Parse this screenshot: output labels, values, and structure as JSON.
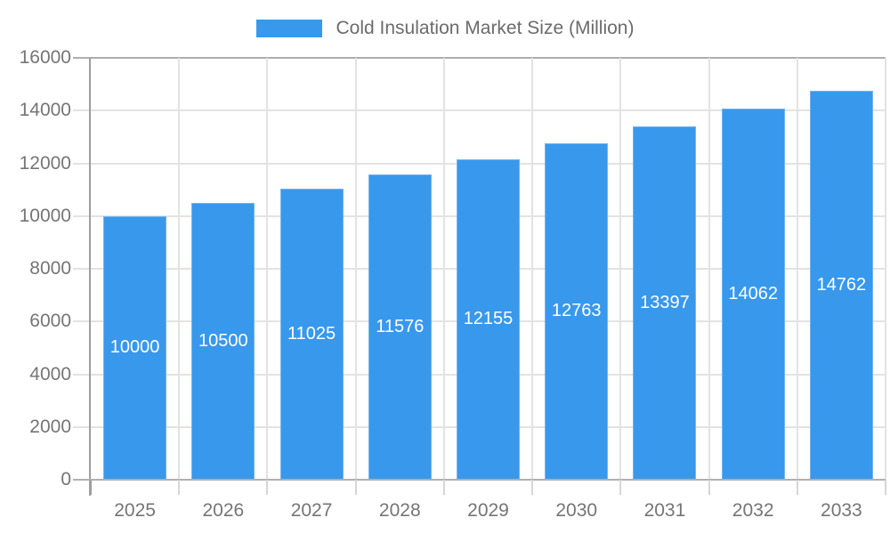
{
  "legend": {
    "label": "Cold Insulation Market Size (Million)"
  },
  "chart_data": {
    "type": "bar",
    "title": "Cold Insulation Market Size (Million)",
    "categories": [
      "2025",
      "2026",
      "2027",
      "2028",
      "2029",
      "2030",
      "2031",
      "2032",
      "2033"
    ],
    "values": [
      10000,
      10500,
      11025,
      11576,
      12155,
      12763,
      13397,
      14062,
      14762
    ],
    "series": [
      {
        "name": "Cold Insulation Market Size (Million)",
        "values": [
          10000,
          10500,
          11025,
          11576,
          12155,
          12763,
          13397,
          14062,
          14762
        ]
      }
    ],
    "bar_labels": [
      "10000",
      "10500",
      "11025",
      "11576",
      "12155",
      "12763",
      "13397",
      "14062",
      "14762"
    ],
    "xlabel": "",
    "ylabel": "",
    "ylim": [
      0,
      16000
    ],
    "yticks": [
      0,
      2000,
      4000,
      6000,
      8000,
      10000,
      12000,
      14000,
      16000
    ],
    "grid": true,
    "legend_position": "top"
  },
  "colors": {
    "bar_fill": "#3898EC",
    "bar_edge": "#72B4F0",
    "bar_label_text": "#FFFFFF",
    "axis_line": "#9E9E9E",
    "baseline": "#B0B0B0",
    "top_gridline": "#ADADAD",
    "gridline": "#E3E3E3",
    "tick": "#D6D6D6",
    "axis_label_text": "#757575",
    "legend_text": "#6B6B6B",
    "background": "#FFFFFF"
  }
}
